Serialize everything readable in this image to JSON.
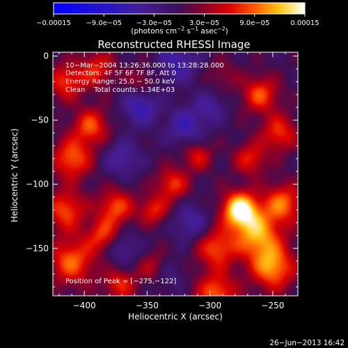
{
  "chart_data": {
    "type": "heatmap",
    "title": "Reconstructed RHESSI Image",
    "xlabel": "Heliocentric X (arcsec)",
    "ylabel": "Heliocentric Y (arcsec)",
    "xlim": [
      -425,
      -230
    ],
    "ylim": [
      -187,
      3
    ],
    "x_ticks": [
      -400,
      -350,
      -300,
      -250
    ],
    "x_tick_labels": [
      "−400",
      "−350",
      "−300",
      "−250"
    ],
    "y_ticks": [
      0,
      -50,
      -100,
      -150
    ],
    "y_tick_labels": [
      "0",
      "−50",
      "−100",
      "−150"
    ],
    "colorbar": {
      "range": [
        -0.00015,
        0.00015
      ],
      "ticks": [
        -0.00015,
        -9e-05,
        -3e-05,
        3e-05,
        9e-05,
        0.00015
      ],
      "tick_labels": [
        "−0.00015",
        "−9.0e−05",
        "−3.0e−05",
        "3.0e−05",
        "9.0e−05",
        "0.00015"
      ],
      "unit_label": "(photons cm",
      "unit_exp1": "−2",
      "unit_mid": " s",
      "unit_exp2": "−1",
      "unit_mid2": " asec",
      "unit_exp3": "−2",
      "unit_end": ")"
    },
    "info_lines": [
      "10−Mar−2004 13:26:36.000 to 13:28:28.000",
      "Detectors: 4F 5F 6F 7F 8F, Att 0",
      "Energy Range: 25.0 − 50.0 keV",
      "Clean    Total counts: 1.34E+03"
    ],
    "peak_label": "Position of Peak = [−275,−122]",
    "peak_position": [
      -275,
      -122
    ],
    "sources": [
      {
        "x": -276,
        "y": -120,
        "amp": 1.0,
        "sigma": 10
      },
      {
        "x": -262,
        "y": -140,
        "amp": 0.7,
        "sigma": 13
      },
      {
        "x": -242,
        "y": -115,
        "amp": 0.6,
        "sigma": 11
      },
      {
        "x": -250,
        "y": -165,
        "amp": 0.7,
        "sigma": 12
      },
      {
        "x": -295,
        "y": -150,
        "amp": 0.55,
        "sigma": 11
      },
      {
        "x": -295,
        "y": -185,
        "amp": 0.6,
        "sigma": 11
      },
      {
        "x": -330,
        "y": -100,
        "amp": 0.5,
        "sigma": 9
      },
      {
        "x": -345,
        "y": -120,
        "amp": 0.45,
        "sigma": 8
      },
      {
        "x": -375,
        "y": -118,
        "amp": 0.55,
        "sigma": 10
      },
      {
        "x": -385,
        "y": -140,
        "amp": 0.5,
        "sigma": 9
      },
      {
        "x": -410,
        "y": -160,
        "amp": 0.6,
        "sigma": 13
      },
      {
        "x": -415,
        "y": -120,
        "amp": 0.55,
        "sigma": 11
      },
      {
        "x": -410,
        "y": -80,
        "amp": 0.6,
        "sigma": 11
      },
      {
        "x": -395,
        "y": -55,
        "amp": 0.55,
        "sigma": 10
      },
      {
        "x": -415,
        "y": -20,
        "amp": 0.5,
        "sigma": 10
      },
      {
        "x": -390,
        "y": -10,
        "amp": 0.45,
        "sigma": 10
      },
      {
        "x": -260,
        "y": -30,
        "amp": 0.55,
        "sigma": 10
      },
      {
        "x": -245,
        "y": -60,
        "amp": 0.5,
        "sigma": 10
      },
      {
        "x": -268,
        "y": -80,
        "amp": 0.45,
        "sigma": 9
      },
      {
        "x": -310,
        "y": -78,
        "amp": 0.4,
        "sigma": 8
      },
      {
        "x": -345,
        "y": -165,
        "amp": 0.35,
        "sigma": 9
      },
      {
        "x": -372,
        "y": -178,
        "amp": 0.45,
        "sigma": 9
      },
      {
        "x": -355,
        "y": -20,
        "amp": 0.25,
        "sigma": 8
      },
      {
        "x": -290,
        "y": -15,
        "amp": 0.2,
        "sigma": 9
      },
      {
        "x": -355,
        "y": -40,
        "amp": -0.45,
        "sigma": 10
      },
      {
        "x": -320,
        "y": -55,
        "amp": -0.4,
        "sigma": 10
      },
      {
        "x": -325,
        "y": -5,
        "amp": -0.4,
        "sigma": 11
      },
      {
        "x": -370,
        "y": -80,
        "amp": -0.35,
        "sigma": 10
      },
      {
        "x": -315,
        "y": -130,
        "amp": -0.35,
        "sigma": 10
      },
      {
        "x": -370,
        "y": -150,
        "amp": -0.3,
        "sigma": 10
      },
      {
        "x": -300,
        "y": -40,
        "amp": -0.3,
        "sigma": 9
      },
      {
        "x": -335,
        "y": -170,
        "amp": -0.25,
        "sigma": 9
      }
    ]
  },
  "footer": {
    "date": "26−Jun−2013 16:42"
  }
}
